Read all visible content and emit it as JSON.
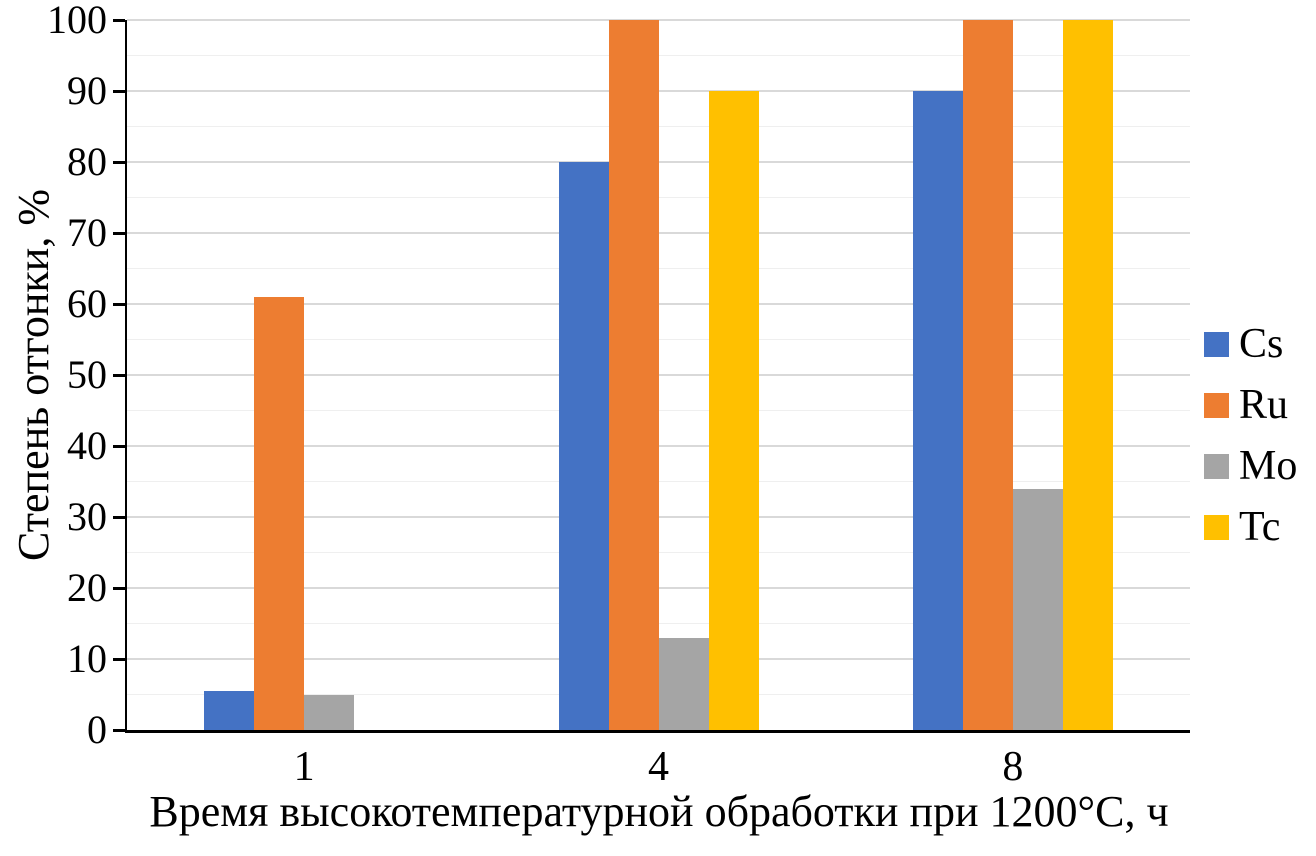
{
  "chart_data": {
    "type": "bar",
    "title": "",
    "categories": [
      "1",
      "4",
      "8"
    ],
    "series": [
      {
        "name": "Cs",
        "color": "#4472C4",
        "values": [
          5.5,
          80,
          90
        ]
      },
      {
        "name": "Ru",
        "color": "#ED7D31",
        "values": [
          61,
          100,
          100
        ]
      },
      {
        "name": "Mo",
        "color": "#A5A5A5",
        "values": [
          5,
          13,
          34
        ]
      },
      {
        "name": "Tc",
        "color": "#FFC000",
        "values": [
          0,
          90,
          100
        ]
      }
    ],
    "xlabel": "Время высокотемпературной обработки при 1200°C, ч",
    "ylabel": "Степень отгонки, %",
    "ylim": [
      0,
      100
    ],
    "y_ticks": [
      0,
      10,
      20,
      30,
      40,
      50,
      60,
      70,
      80,
      90,
      100
    ],
    "y_minor_step": 5,
    "grid": "horizontal, major and minor",
    "legend_position": "right"
  },
  "style_colors": {
    "axis": "#000000",
    "major_grid": "#D9D9D9",
    "minor_grid": "#EFEFEF",
    "background": "#FFFFFF"
  }
}
